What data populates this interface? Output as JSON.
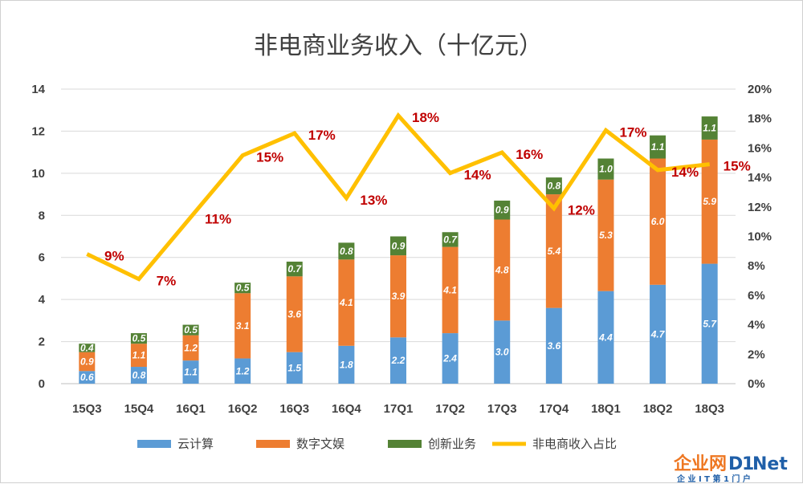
{
  "chart_data": {
    "type": "bar",
    "stacked": true,
    "title": "非电商业务收入（十亿元）",
    "categories": [
      "15Q3",
      "15Q4",
      "16Q1",
      "16Q2",
      "16Q3",
      "16Q4",
      "17Q1",
      "17Q2",
      "17Q3",
      "17Q4",
      "18Q1",
      "18Q2",
      "18Q3"
    ],
    "series": [
      {
        "name": "云计算",
        "color": "#5b9bd5",
        "values": [
          0.6,
          0.8,
          1.1,
          1.2,
          1.5,
          1.8,
          2.2,
          2.4,
          3.0,
          3.6,
          4.4,
          4.7,
          5.7
        ]
      },
      {
        "name": "数字文娱",
        "color": "#ed7d31",
        "values": [
          0.9,
          1.1,
          1.2,
          3.1,
          3.6,
          4.1,
          3.9,
          4.1,
          4.8,
          5.4,
          5.3,
          6.0,
          5.9
        ]
      },
      {
        "name": "创新业务",
        "color": "#548235",
        "values": [
          0.4,
          0.5,
          0.5,
          0.5,
          0.7,
          0.8,
          0.9,
          0.7,
          0.9,
          0.8,
          1.0,
          1.1,
          1.1
        ]
      }
    ],
    "line_series": {
      "name": "非电商收入占比",
      "color": "#ffc000",
      "values": [
        0.088,
        0.071,
        0.113,
        0.155,
        0.17,
        0.126,
        0.182,
        0.143,
        0.157,
        0.119,
        0.172,
        0.145,
        0.149
      ],
      "labels": [
        "9%",
        "7%",
        "11%",
        "15%",
        "17%",
        "13%",
        "18%",
        "14%",
        "16%",
        "12%",
        "17%",
        "14%",
        "15%"
      ]
    },
    "ylim_left": [
      0,
      14
    ],
    "yticks_left": [
      "0",
      "2",
      "4",
      "6",
      "8",
      "10",
      "12",
      "14"
    ],
    "ylim_right": [
      0,
      0.2
    ],
    "yticks_right": [
      "0%",
      "2%",
      "4%",
      "6%",
      "8%",
      "10%",
      "12%",
      "14%",
      "16%",
      "18%",
      "20%"
    ],
    "legend_position": "bottom",
    "grid": true
  },
  "watermark": {
    "main_text": "企业网",
    "brand_d": "D",
    "brand_i": "1",
    "brand_net": "Net",
    "sub_text": "企 业 I T 第 1 门 户"
  }
}
